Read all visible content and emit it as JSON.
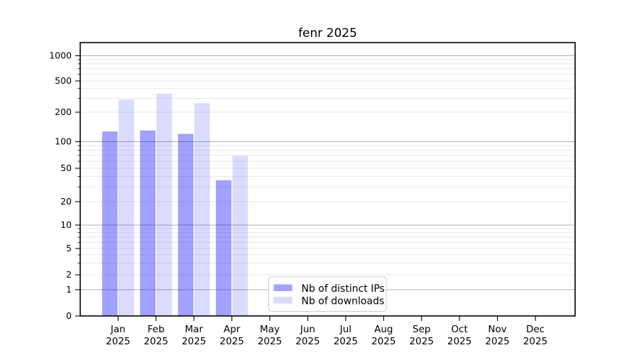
{
  "chart_data": {
    "type": "bar",
    "title": "fenr 2025",
    "year": "2025",
    "categories": [
      "Jan",
      "Feb",
      "Mar",
      "Apr",
      "May",
      "Jun",
      "Jul",
      "Aug",
      "Sep",
      "Oct",
      "Nov",
      "Dec"
    ],
    "series": [
      {
        "name": "Nb of distinct IPs",
        "base_color": "#0000ff",
        "alpha": 0.37,
        "effective_color": "#9e9eff",
        "values": [
          127,
          130,
          120,
          36,
          0,
          0,
          0,
          0,
          0,
          0,
          0,
          0
        ]
      },
      {
        "name": "Nb of downloads",
        "base_color": "#0000ff",
        "alpha": 0.14,
        "effective_color": "#d9d9ff",
        "values": [
          290,
          345,
          260,
          69,
          0,
          0,
          0,
          0,
          0,
          0,
          0,
          0
        ]
      }
    ],
    "y_ticks": [
      0,
      1,
      2,
      5,
      10,
      20,
      50,
      100,
      200,
      500,
      1000
    ],
    "yscale": "symlog",
    "ylim": [
      0,
      1400
    ],
    "xlabel": "",
    "ylabel": "",
    "grid": "horizontal",
    "legend_position": "bottom-center"
  }
}
